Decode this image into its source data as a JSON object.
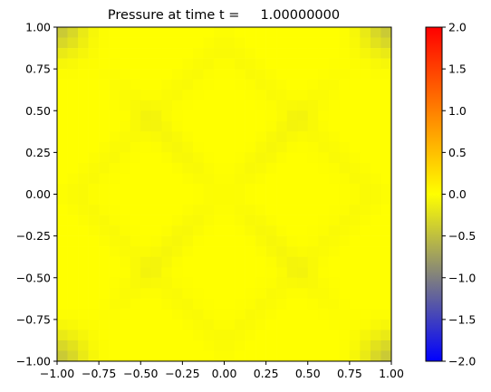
{
  "chart_data": {
    "type": "heatmap",
    "title": "Pressure at time t =     1.00000000",
    "xlabel": "",
    "ylabel": "",
    "xlim": [
      -1.0,
      1.0
    ],
    "ylim": [
      -1.0,
      1.0
    ],
    "x_ticks": [
      "−1.00",
      "−0.75",
      "−0.50",
      "−0.25",
      "0.00",
      "0.25",
      "0.50",
      "0.75",
      "1.00"
    ],
    "x_tick_values": [
      -1.0,
      -0.75,
      -0.5,
      -0.25,
      0.0,
      0.25,
      0.5,
      0.75,
      1.0
    ],
    "y_ticks": [
      "−1.00",
      "−0.75",
      "−0.50",
      "−0.25",
      "0.00",
      "0.25",
      "0.50",
      "0.75",
      "1.00"
    ],
    "y_tick_values": [
      -1.0,
      -0.75,
      -0.5,
      -0.25,
      0.0,
      0.25,
      0.5,
      0.75,
      1.0
    ],
    "colorbar": {
      "range": [
        -2.0,
        2.0
      ],
      "ticks": [
        "−2.0",
        "−1.5",
        "−1.0",
        "−0.5",
        "0.0",
        "0.5",
        "1.0",
        "1.5",
        "2.0"
      ],
      "tick_values": [
        -2.0,
        -1.5,
        -1.0,
        -0.5,
        0.0,
        0.5,
        1.0,
        1.5,
        2.0
      ],
      "colormap": [
        {
          "value": -2.0,
          "color": "#0000ff"
        },
        {
          "value": -1.0,
          "color": "#7f7f7f"
        },
        {
          "value": 0.0,
          "color": "#ffff00"
        },
        {
          "value": 1.0,
          "color": "#ff8000"
        },
        {
          "value": 2.0,
          "color": "#ff0000"
        }
      ]
    },
    "grid": false,
    "grid_resolution": [
      32,
      32
    ],
    "field_summary": {
      "interior_value": 0.0,
      "corner_value": -0.45,
      "description_of_pattern": "near-uniform ~0 with negative dips at the four corners and faint diagonal ridges"
    }
  }
}
